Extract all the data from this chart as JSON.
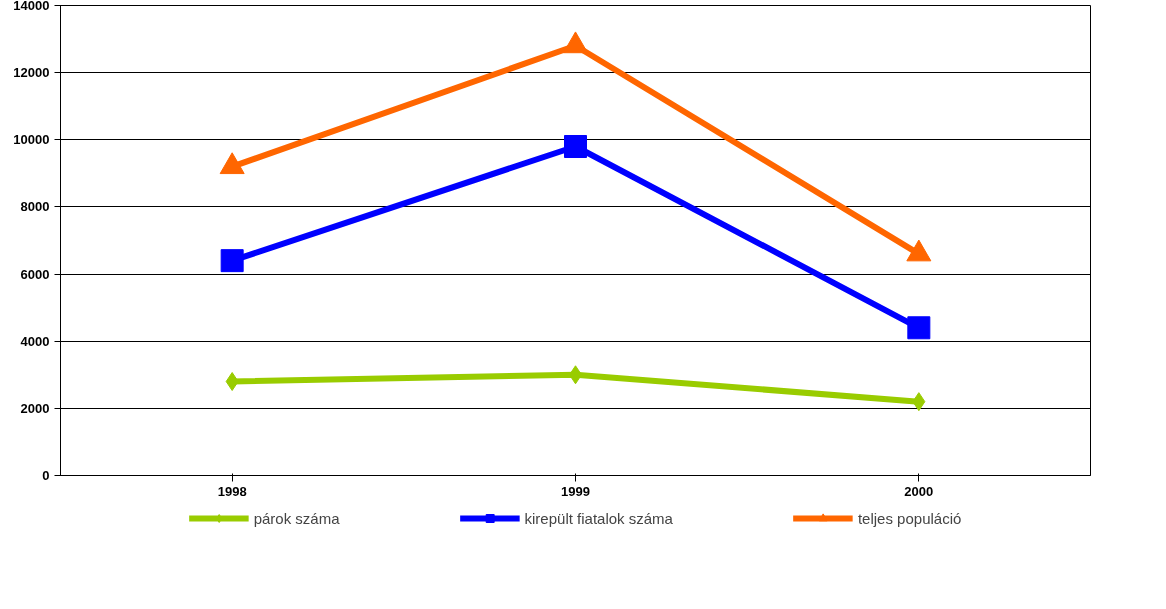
{
  "chart_data": {
    "type": "line",
    "categories": [
      "1998",
      "1999",
      "2000"
    ],
    "series": [
      {
        "name": "párok száma",
        "color": "#99cc00",
        "marker": "diamond",
        "values": [
          2800,
          3000,
          2200
        ]
      },
      {
        "name": "kirepült fiatalok száma",
        "color": "#0000ff",
        "marker": "square",
        "values": [
          6400,
          9800,
          4400
        ]
      },
      {
        "name": "teljes populáció",
        "color": "#ff6600",
        "marker": "triangle",
        "values": [
          9200,
          12800,
          6600
        ]
      }
    ],
    "ylim": [
      0,
      14000
    ],
    "yticks": [
      0,
      2000,
      4000,
      6000,
      8000,
      10000,
      12000,
      14000
    ],
    "grid": "y",
    "legend": "bottom"
  }
}
